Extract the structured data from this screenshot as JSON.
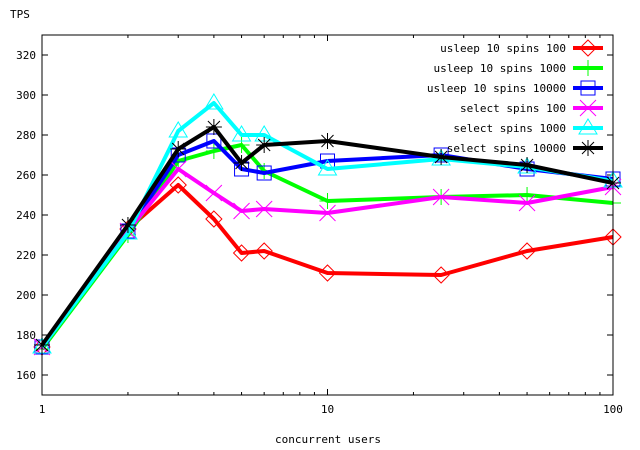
{
  "chart_data": {
    "type": "line",
    "title": "",
    "xlabel": "concurrent users",
    "ylabel": "TPS",
    "xscale": "log",
    "xlim": [
      1,
      100
    ],
    "ylim": [
      150,
      330
    ],
    "xticks": [
      1,
      10,
      100
    ],
    "xtick_labels": [
      "1",
      "10",
      "100"
    ],
    "yticks": [
      160,
      180,
      200,
      220,
      240,
      260,
      280,
      300,
      320
    ],
    "ytick_labels": [
      "160",
      "180",
      "200",
      "220",
      "240",
      "260",
      "280",
      "300",
      "320"
    ],
    "legend_position": "top-right",
    "x": [
      1,
      2,
      3,
      4,
      5,
      6,
      10,
      25,
      50,
      100
    ],
    "series": [
      {
        "name": "usleep 10 spins 100",
        "color": "#ff0000",
        "marker": "diamond",
        "values": [
          174,
          233,
          255,
          238,
          221,
          222,
          211,
          210,
          222,
          229
        ]
      },
      {
        "name": "usleep 10 spins 1000",
        "color": "#00ff00",
        "marker": "plus",
        "values": [
          173,
          230,
          267,
          272,
          275,
          262,
          247,
          249,
          250,
          246
        ]
      },
      {
        "name": "usleep 10 spins 10000",
        "color": "#0000ff",
        "marker": "square",
        "values": [
          174,
          232,
          270,
          277,
          263,
          261,
          267,
          270,
          263,
          258
        ]
      },
      {
        "name": "select spins 100",
        "color": "#ff00ff",
        "marker": "cross",
        "values": [
          174,
          232,
          263,
          251,
          242,
          243,
          241,
          249,
          246,
          254
        ]
      },
      {
        "name": "select spins 1000",
        "color": "#00ffff",
        "marker": "triangle",
        "values": [
          174,
          231,
          282,
          296,
          280,
          280,
          263,
          268,
          264,
          257
        ]
      },
      {
        "name": "select spins 10000",
        "color": "#000000",
        "marker": "star",
        "values": [
          175,
          235,
          273,
          284,
          266,
          275,
          277,
          269,
          265,
          256
        ]
      }
    ]
  }
}
